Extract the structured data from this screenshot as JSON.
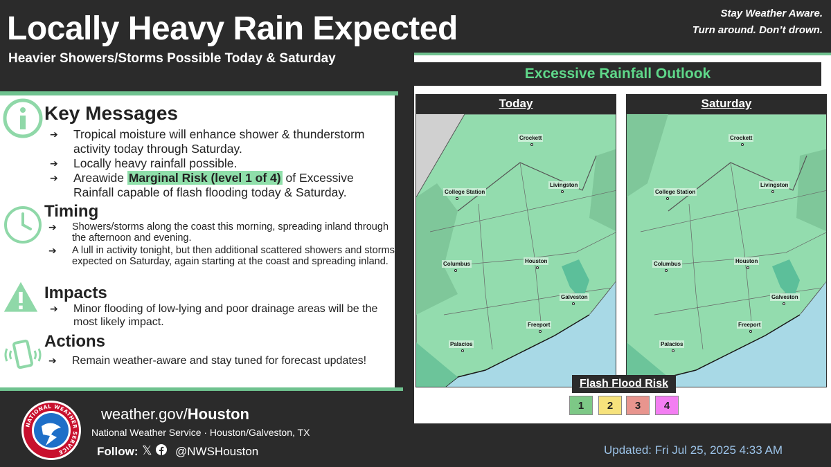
{
  "header": {
    "title": "Locally Heavy Rain Expected",
    "subtitle": "Heavier Showers/Storms Possible Today & Saturday",
    "slogan_line1": "Stay Weather Aware.",
    "slogan_line2": "Turn around. Don’t drown."
  },
  "key_messages": {
    "title": "Key Messages",
    "icon": "info-icon",
    "bullet1": "Tropical moisture will enhance shower & thunderstorm activity today through Saturday.",
    "bullet2": "Locally heavy rainfall possible.",
    "bullet3_pre": "Areawide ",
    "bullet3_highlight": "Marginal Risk (level 1 of 4)",
    "bullet3_post": " of Excessive Rainfall capable of flash flooding today & Saturday."
  },
  "timing": {
    "title": "Timing",
    "icon": "clock-icon",
    "bullet1": "Showers/storms along the coast this morning, spreading inland through the afternoon and evening.",
    "bullet2": "A lull in activity tonight, but then additional scattered showers and storms expected on Saturday, again starting at the coast and spreading inland."
  },
  "impacts": {
    "title": "Impacts",
    "icon": "warning-icon",
    "bullet1": "Minor flooding of low-lying and poor drainage areas will be the most likely impact."
  },
  "actions": {
    "title": "Actions",
    "icon": "phone-alert-icon",
    "bullet1": "Remain weather-aware and stay tuned for forecast updates!"
  },
  "outlook": {
    "title": "Excessive Rainfall Outlook",
    "maps": [
      {
        "label": "Today"
      },
      {
        "label": "Saturday"
      }
    ],
    "cities": [
      "Crockett",
      "College Station",
      "Livingston",
      "Columbus",
      "Houston",
      "Galveston",
      "Freeport",
      "Palacios"
    ],
    "legend_title": "Flash Flood Risk",
    "legend": [
      {
        "level": "1",
        "color": "#7dc886"
      },
      {
        "level": "2",
        "color": "#f6e27c"
      },
      {
        "level": "3",
        "color": "#e8958e"
      },
      {
        "level": "4",
        "color": "#f37ef2"
      }
    ]
  },
  "footer": {
    "site_prefix": "weather.gov/",
    "site_bold": "Houston",
    "office": "National Weather Service · Houston/Galveston, TX",
    "follow": "Follow:",
    "x_icon": "x-logo-icon",
    "facebook_icon": "facebook-icon",
    "x_glyph": "𝕏",
    "handle": "@NWSHouston",
    "updated": "Updated: Fri Jul 25, 2025 4:33 AM",
    "seal_text": "NATIONAL WEATHER SERVICE"
  },
  "colors": {
    "accent_green": "#6fc28f",
    "marginal_fill": "#93dcae",
    "dark_bg": "#2b2b2b"
  }
}
